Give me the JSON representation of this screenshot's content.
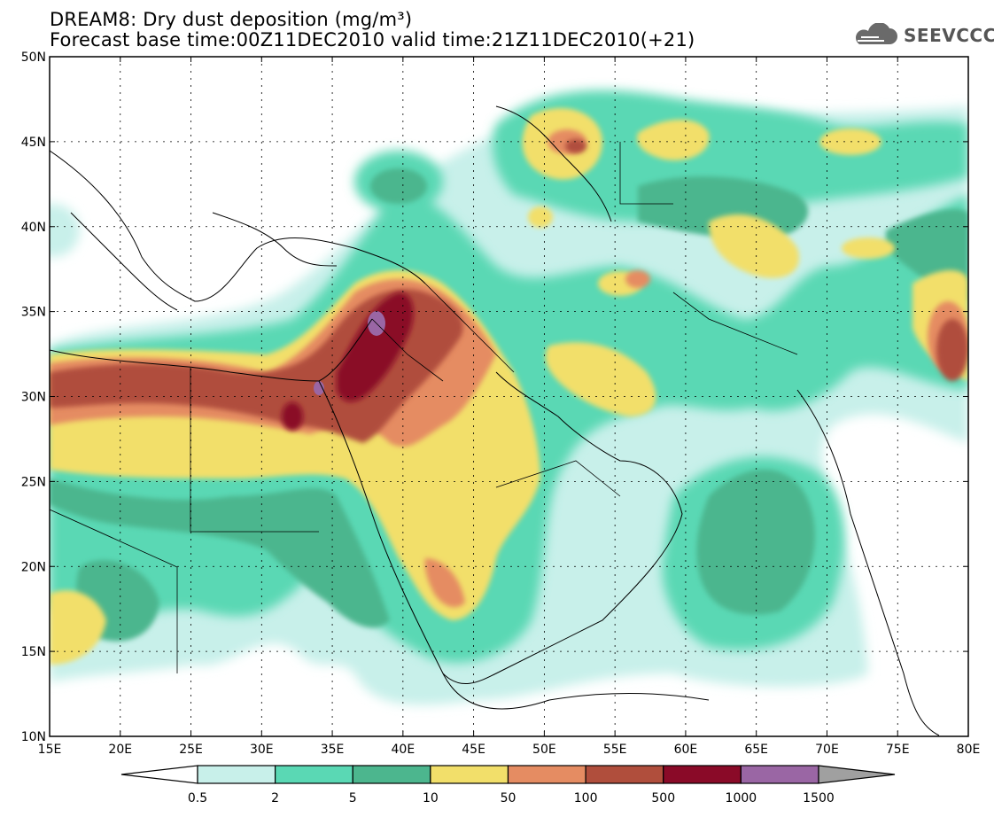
{
  "title_line1": "DREAM8: Dry dust deposition (mg/m³)",
  "title_line2": "Forecast base time:00Z11DEC2010 valid time:21Z11DEC2010(+21)",
  "logo": {
    "text": "SEEVCCC",
    "icon": "cloud-icon"
  },
  "map": {
    "lat_labels": [
      "50N",
      "45N",
      "40N",
      "35N",
      "30N",
      "25N",
      "20N",
      "15N",
      "10N"
    ],
    "lon_labels": [
      "15E",
      "20E",
      "25E",
      "30E",
      "35E",
      "40E",
      "45E",
      "50E",
      "55E",
      "60E",
      "65E",
      "70E",
      "75E",
      "80E"
    ]
  },
  "colorbar": {
    "labels": [
      "0.5",
      "2",
      "5",
      "10",
      "50",
      "100",
      "500",
      "1000",
      "1500"
    ],
    "colors": [
      "#ffffff",
      "#c8f0ea",
      "#5ad8b4",
      "#4cb68e",
      "#f2df6a",
      "#e58c62",
      "#b04e3c",
      "#8a0a28",
      "#9a66a4",
      "#a0a0a0"
    ]
  }
}
